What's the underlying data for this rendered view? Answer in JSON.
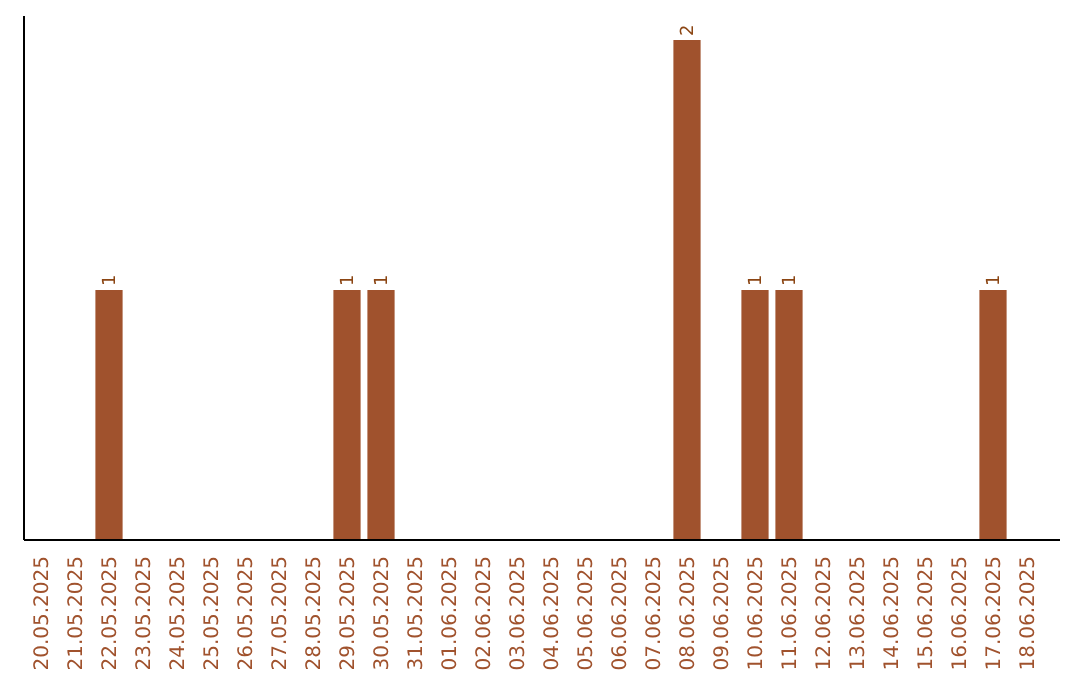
{
  "chart_data": {
    "type": "bar",
    "categories": [
      "20.05.2025",
      "21.05.2025",
      "22.05.2025",
      "23.05.2025",
      "24.05.2025",
      "25.05.2025",
      "26.05.2025",
      "27.05.2025",
      "28.05.2025",
      "29.05.2025",
      "30.05.2025",
      "31.05.2025",
      "01.06.2025",
      "02.06.2025",
      "03.06.2025",
      "04.06.2025",
      "05.06.2025",
      "06.06.2025",
      "07.06.2025",
      "08.06.2025",
      "09.06.2025",
      "10.06.2025",
      "11.06.2025",
      "12.06.2025",
      "13.06.2025",
      "14.06.2025",
      "15.06.2025",
      "16.06.2025",
      "17.06.2025",
      "18.06.2025"
    ],
    "values": [
      0,
      0,
      1,
      0,
      0,
      0,
      0,
      0,
      0,
      1,
      1,
      0,
      0,
      0,
      0,
      0,
      0,
      0,
      0,
      2,
      0,
      1,
      1,
      0,
      0,
      0,
      0,
      0,
      1,
      0
    ],
    "value_labels": [
      null,
      null,
      "1",
      null,
      null,
      null,
      null,
      null,
      null,
      "1",
      "1",
      null,
      null,
      null,
      null,
      null,
      null,
      null,
      null,
      "2",
      null,
      "1",
      "1",
      null,
      null,
      null,
      null,
      null,
      "1",
      null
    ],
    "color": "#a0522d",
    "grid": false,
    "tick_labels": "x"
  }
}
